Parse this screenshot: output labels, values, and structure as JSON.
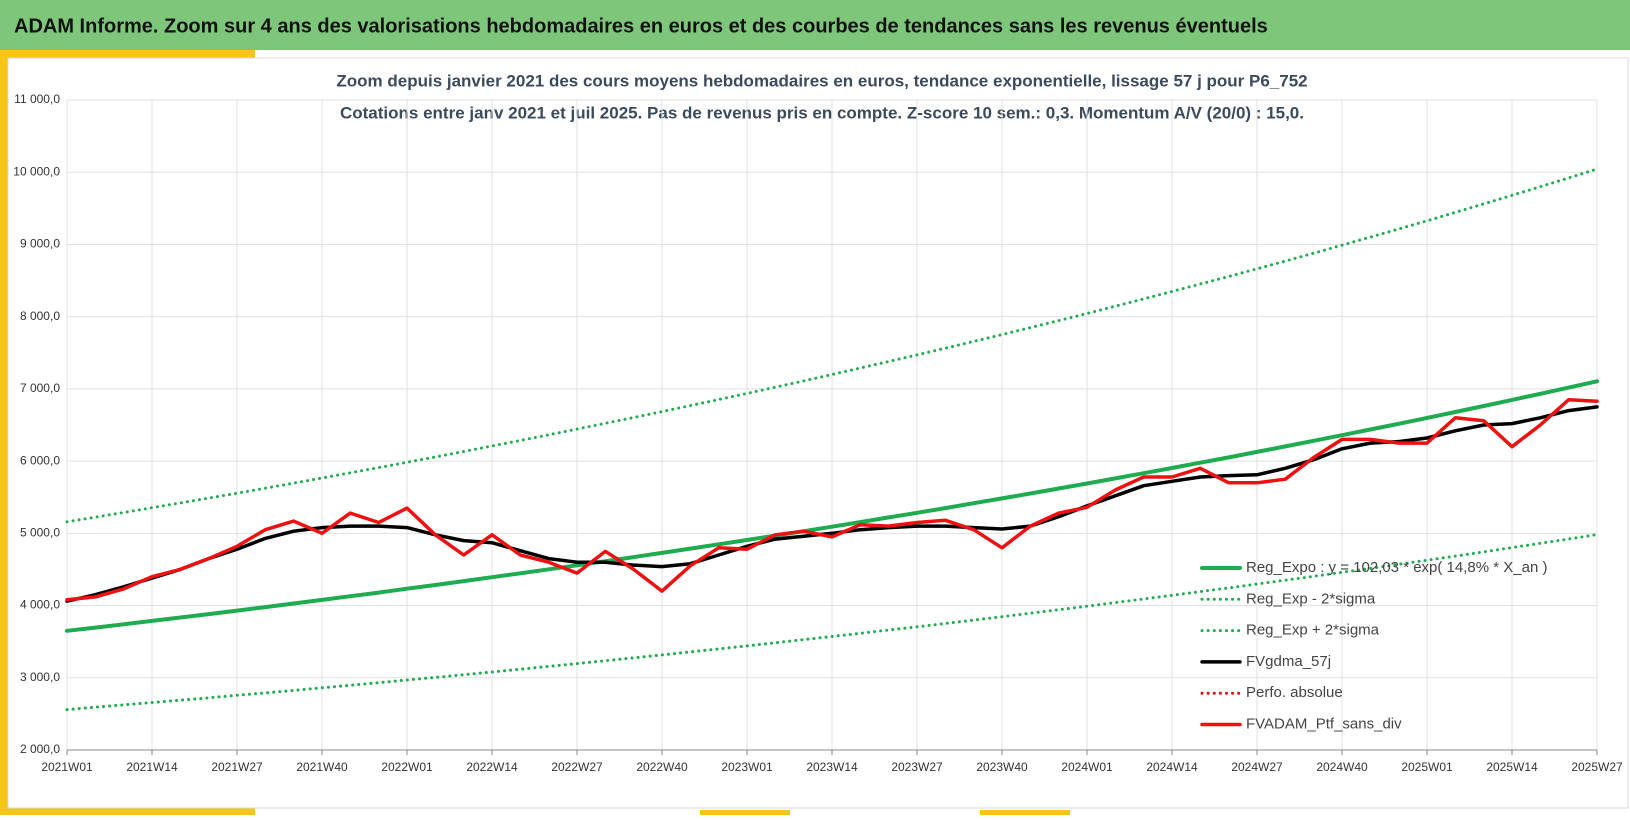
{
  "header": {
    "title": "ADAM Informe. Zoom sur 4 ans des valorisations hebdomadaires en euros et des courbes de tendances sans les revenus éventuels"
  },
  "chart_data": {
    "type": "line",
    "title": "Zoom depuis janvier 2021 des cours moyens hebdomadaires  en euros, tendance exponentielle, lissage 57 j pour P6_752",
    "subtitle": "Cotations entre janv 2021 et juil 2025. Pas de revenus pris en compte. Z-score 10 sem.: 0,3. Momentum A/V (20/0) : 15,0.",
    "categories": [
      "2021W01",
      null,
      null,
      "2021W14",
      null,
      null,
      "2021W27",
      null,
      null,
      "2021W40",
      null,
      null,
      "2022W01",
      null,
      null,
      "2022W14",
      null,
      null,
      "2022W27",
      null,
      null,
      "2022W40",
      null,
      null,
      "2023W01",
      null,
      null,
      "2023W14",
      null,
      null,
      "2023W27",
      null,
      null,
      "2023W40",
      null,
      null,
      "2024W01",
      null,
      null,
      "2024W14",
      null,
      null,
      "2024W27",
      null,
      null,
      "2024W40",
      null,
      null,
      "2025W01",
      null,
      null,
      "2025W14",
      null,
      null,
      "2025W27"
    ],
    "ylim": [
      2000,
      11000
    ],
    "yticks": [
      {
        "value": 2000,
        "label": "2 000,0"
      },
      {
        "value": 3000,
        "label": "3 000,0"
      },
      {
        "value": 4000,
        "label": "4 000,0"
      },
      {
        "value": 5000,
        "label": "5 000,0"
      },
      {
        "value": 6000,
        "label": "6 000,0"
      },
      {
        "value": 7000,
        "label": "7 000,0"
      },
      {
        "value": 8000,
        "label": "8 000,0"
      },
      {
        "value": 9000,
        "label": "9 000,0"
      },
      {
        "value": 10000,
        "label": "10 000,0"
      },
      {
        "value": 11000,
        "label": "11 000,0"
      }
    ],
    "grid": true,
    "legend": "right",
    "series": [
      {
        "name": "Reg_Expo : y = 102,03 * exp( 14,8% *  X_an )",
        "color": "#1fab4f",
        "style": "solid",
        "width": 4,
        "values": [
          3650,
          3695,
          3741,
          3788,
          3835,
          3882,
          3930,
          3979,
          4029,
          4079,
          4129,
          4180,
          4233,
          4285,
          4338,
          4392,
          4446,
          4502,
          4557,
          4614,
          4671,
          4729,
          4788,
          4848,
          4907,
          4968,
          5030,
          5092,
          5156,
          5220,
          5284,
          5350,
          5417,
          5484,
          5552,
          5621,
          5690,
          5761,
          5833,
          5905,
          5978,
          6052,
          6128,
          6204,
          6281,
          6359,
          6438,
          6517,
          6598,
          6680,
          6763,
          6847,
          6932,
          7018,
          7105
        ]
      },
      {
        "name": "Reg_Exp - 2*sigma",
        "color": "#1fab4f",
        "style": "dotted",
        "width": 3,
        "values": [
          2560,
          2592,
          2624,
          2657,
          2690,
          2723,
          2757,
          2791,
          2825,
          2861,
          2896,
          2932,
          2969,
          3005,
          3043,
          3080,
          3119,
          3157,
          3196,
          3236,
          3276,
          3317,
          3358,
          3400,
          3442,
          3485,
          3528,
          3572,
          3616,
          3661,
          3706,
          3752,
          3799,
          3846,
          3894,
          3942,
          3991,
          4041,
          4091,
          4142,
          4193,
          4245,
          4298,
          4351,
          4405,
          4460,
          4515,
          4571,
          4628,
          4685,
          4743,
          4802,
          4862,
          4922,
          4983
        ]
      },
      {
        "name": "Reg_Exp + 2*sigma",
        "color": "#1fab4f",
        "style": "dotted",
        "width": 3,
        "values": [
          5160,
          5224,
          5289,
          5355,
          5421,
          5488,
          5556,
          5625,
          5695,
          5766,
          5838,
          5910,
          5984,
          6057,
          6133,
          6209,
          6286,
          6364,
          6443,
          6523,
          6604,
          6686,
          6769,
          6853,
          6938,
          7024,
          7111,
          7199,
          7289,
          7379,
          7471,
          7564,
          7657,
          7752,
          7848,
          7946,
          8044,
          8145,
          8246,
          8348,
          8452,
          8556,
          8663,
          8770,
          8879,
          8989,
          9101,
          9214,
          9328,
          9444,
          9561,
          9680,
          9800,
          9921,
          10044
        ]
      },
      {
        "name": "FVgdma_57j",
        "color": "#000000",
        "style": "solid",
        "width": 3.5,
        "values": [
          4060,
          4150,
          4260,
          4380,
          4500,
          4650,
          4780,
          4930,
          5030,
          5080,
          5100,
          5100,
          5080,
          4980,
          4900,
          4870,
          4760,
          4650,
          4600,
          4600,
          4560,
          4540,
          4580,
          4700,
          4820,
          4920,
          4960,
          5000,
          5050,
          5080,
          5100,
          5100,
          5080,
          5060,
          5100,
          5230,
          5380,
          5520,
          5660,
          5720,
          5780,
          5800,
          5810,
          5900,
          6020,
          6170,
          6250,
          6270,
          6320,
          6420,
          6500,
          6520,
          6600,
          6700,
          6750
        ]
      },
      {
        "name": "Perfo. absolue",
        "color": "#e01010",
        "style": "dotted",
        "width": 3,
        "values": [
          4080,
          4120,
          4230,
          4400,
          4500,
          4650,
          4820,
          5050,
          5170,
          5000,
          5280,
          5150,
          5350,
          4980,
          4700,
          4980,
          4700,
          4600,
          4450,
          4750,
          4500,
          4200,
          4550,
          4800,
          4780,
          4980,
          5030,
          4950,
          5120,
          5100,
          5150,
          5180,
          5050,
          4800,
          5100,
          5280,
          5360,
          5600,
          5780,
          5780,
          5900,
          5700,
          5700,
          5750,
          6050,
          6300,
          6300,
          6250,
          6250,
          6600,
          6560,
          6200,
          6500,
          6850,
          6830
        ]
      },
      {
        "name": "FVADAM_Ptf_sans_div",
        "color": "#ee1111",
        "style": "solid",
        "width": 3.5,
        "values": [
          4080,
          4120,
          4230,
          4400,
          4500,
          4650,
          4820,
          5050,
          5170,
          5000,
          5280,
          5150,
          5350,
          4980,
          4700,
          4980,
          4700,
          4600,
          4450,
          4750,
          4500,
          4200,
          4550,
          4800,
          4780,
          4980,
          5030,
          4950,
          5120,
          5100,
          5150,
          5180,
          5050,
          4800,
          5100,
          5280,
          5360,
          5600,
          5780,
          5780,
          5900,
          5700,
          5700,
          5750,
          6050,
          6300,
          6300,
          6250,
          6250,
          6600,
          6560,
          6200,
          6500,
          6850,
          6830
        ]
      }
    ]
  }
}
